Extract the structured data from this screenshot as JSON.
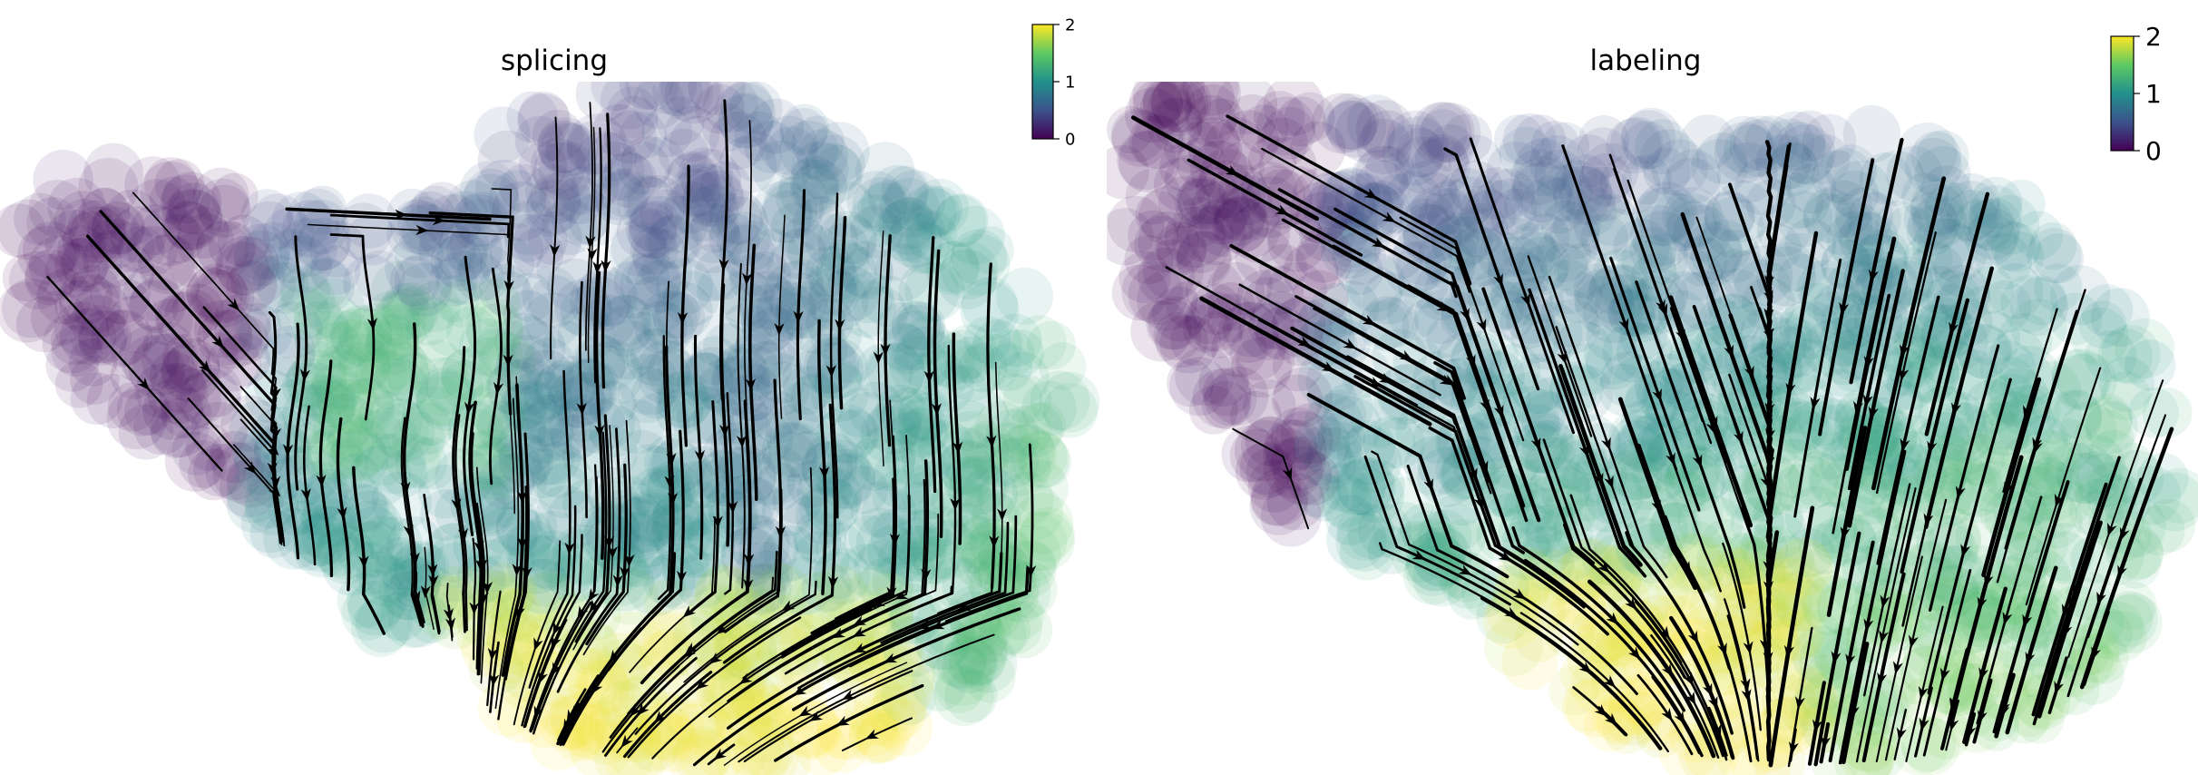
{
  "chart_data": [
    {
      "type": "scatter",
      "title": "splicing",
      "subtype": "streamplot over embedding",
      "colormap": "viridis",
      "colorbar": {
        "min": 0,
        "max": 2,
        "ticks": [
          "0",
          "1",
          "2"
        ]
      },
      "axes_visible": false,
      "grid": false,
      "regions": [
        {
          "name": "upper-left lobe",
          "value": 0.0
        },
        {
          "name": "central band",
          "value": 1.0
        },
        {
          "name": "right side",
          "value": 1.2
        },
        {
          "name": "bottom",
          "value": 2.0
        }
      ]
    },
    {
      "type": "scatter",
      "title": "labeling",
      "subtype": "streamplot over embedding",
      "colormap": "viridis",
      "colorbar": {
        "min": 0,
        "max": 2,
        "ticks": [
          "0",
          "1",
          "2"
        ]
      },
      "axes_visible": false,
      "grid": false,
      "regions": [
        {
          "name": "upper-left lobe",
          "value": 0.0
        },
        {
          "name": "central band",
          "value": 1.0
        },
        {
          "name": "right side",
          "value": 1.2
        },
        {
          "name": "bottom",
          "value": 2.0
        }
      ]
    }
  ]
}
